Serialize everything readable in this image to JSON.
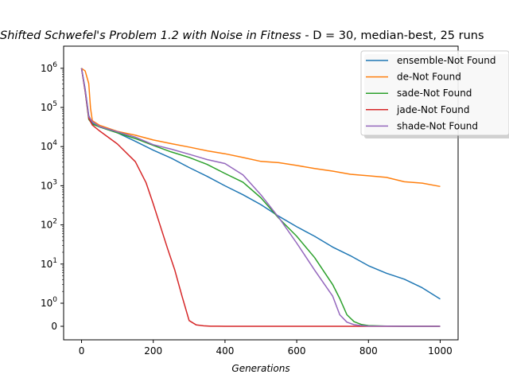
{
  "chart_data": {
    "type": "line",
    "title_math": "Shifted Schwefel's Problem 1.2 with Noise in Fitness",
    "title_suffix": " - D = 30, median-best, 25 runs",
    "xlabel": "Generations",
    "ylabel": "",
    "xlim": [
      -50,
      1050
    ],
    "yscale": "symlog",
    "x_ticks": [
      0,
      200,
      400,
      600,
      800,
      1000
    ],
    "y_ticks": [
      {
        "value": 0,
        "label": "0"
      },
      {
        "value": 1,
        "label": "10^0"
      },
      {
        "value": 10,
        "label": "10^1"
      },
      {
        "value": 100,
        "label": "10^2"
      },
      {
        "value": 1000,
        "label": "10^3"
      },
      {
        "value": 10000,
        "label": "10^4"
      },
      {
        "value": 100000,
        "label": "10^5"
      },
      {
        "value": 1000000,
        "label": "10^6"
      }
    ],
    "legend_position": "top-right",
    "grid": false,
    "series": [
      {
        "name": "ensemble-Not Found",
        "color": "#1f77b4",
        "x": [
          0,
          10,
          20,
          30,
          50,
          100,
          150,
          200,
          250,
          300,
          350,
          400,
          450,
          500,
          550,
          600,
          650,
          700,
          750,
          800,
          850,
          900,
          950,
          1000
        ],
        "y": [
          1000000,
          300000,
          60000,
          40000,
          32000,
          22000,
          14000,
          8000,
          5000,
          3000,
          1700,
          1000,
          600,
          320,
          170,
          90,
          50,
          28,
          16,
          9,
          6,
          4,
          2.5,
          1.3
        ]
      },
      {
        "name": "de-Not Found",
        "color": "#ff7f0e",
        "x": [
          0,
          10,
          20,
          25,
          30,
          50,
          100,
          150,
          200,
          250,
          300,
          350,
          400,
          450,
          500,
          550,
          600,
          650,
          700,
          750,
          800,
          850,
          900,
          950,
          1000
        ],
        "y": [
          1000000,
          850000,
          400000,
          100000,
          45000,
          35000,
          25000,
          19000,
          15000,
          12000,
          9500,
          8000,
          6500,
          5200,
          4300,
          3800,
          3300,
          2800,
          2300,
          2000,
          1800,
          1600,
          1300,
          1150,
          950
        ]
      },
      {
        "name": "sade-Not Found",
        "color": "#2ca02c",
        "x": [
          0,
          10,
          20,
          30,
          50,
          100,
          150,
          200,
          250,
          300,
          350,
          400,
          450,
          500,
          550,
          600,
          650,
          700,
          720,
          740,
          760,
          780,
          800,
          850,
          900,
          950,
          1000
        ],
        "y": [
          1000000,
          250000,
          50000,
          38000,
          31000,
          23000,
          16000,
          10500,
          7500,
          5200,
          3500,
          2100,
          1200,
          500,
          150,
          50,
          15,
          3,
          1.3,
          0.5,
          0.2,
          0.08,
          0.03,
          0.01,
          0,
          0,
          0
        ]
      },
      {
        "name": "jade-Not Found",
        "color": "#d62728",
        "x": [
          0,
          10,
          20,
          30,
          50,
          100,
          150,
          180,
          200,
          220,
          240,
          260,
          280,
          300,
          320,
          340,
          360,
          380,
          400,
          500,
          600,
          700,
          800,
          900,
          1000
        ],
        "y": [
          1000000,
          250000,
          55000,
          35000,
          25000,
          12000,
          4000,
          1200,
          350,
          90,
          25,
          7,
          1.5,
          0.25,
          0.06,
          0.02,
          0.005,
          0.002,
          0.001,
          0,
          0,
          0,
          0,
          0,
          0
        ]
      },
      {
        "name": "shade-Not Found",
        "color": "#9467bd",
        "x": [
          0,
          10,
          20,
          30,
          50,
          100,
          150,
          200,
          250,
          300,
          350,
          400,
          450,
          500,
          550,
          600,
          650,
          700,
          720,
          740,
          760,
          780,
          800,
          850,
          900,
          950,
          1000
        ],
        "y": [
          1000000,
          280000,
          60000,
          42000,
          33000,
          24000,
          17000,
          11500,
          8500,
          6300,
          4800,
          3600,
          1900,
          600,
          150,
          35,
          7,
          1.5,
          0.5,
          0.18,
          0.07,
          0.03,
          0.01,
          0.003,
          0,
          0,
          0
        ]
      }
    ]
  }
}
